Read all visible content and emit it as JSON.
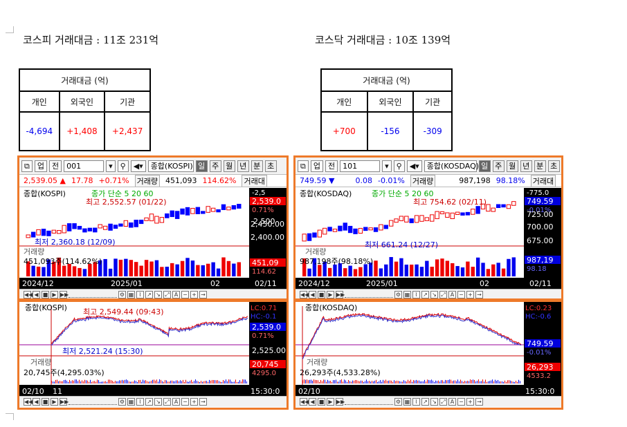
{
  "headlines": {
    "kospi": "코스피 거래대금 : 11조 231억",
    "kosdaq": "코스닥 거래대금 : 10조 139억"
  },
  "tables": {
    "kospi": {
      "title": "거래대금 (억)",
      "headers": [
        "개인",
        "외국인",
        "기관"
      ],
      "values": [
        "-4,694",
        "+1,408",
        "+2,437"
      ]
    },
    "kosdaq": {
      "title": "거래대금 (억)",
      "headers": [
        "개인",
        "외국인",
        "기관"
      ],
      "values": [
        "+700",
        "-156",
        "-309"
      ]
    }
  },
  "panels": {
    "kospi": {
      "toolbar": {
        "menu": "업",
        "market": "전",
        "code": "001",
        "name": "종합(KOSPI)",
        "tabs": [
          "일",
          "주",
          "월",
          "년",
          "분",
          "초"
        ],
        "selected_tab": "일"
      },
      "quote": {
        "price": "2,539.05",
        "arrow": "▲",
        "change": "17.78",
        "pct": "+0.71%",
        "vol_label": "거래량",
        "volume": "451,093",
        "vol_pct": "114.62%",
        "trail": "거래대"
      },
      "daily": {
        "legend_name": "종합(KOSPI)",
        "legend_ma": "종가 단순 5 20 60",
        "high_label": "최고 2,552.57 (01/22)",
        "low_label": "최저 2,360.18 (12/09)",
        "price_box": "2,539.0",
        "pct_box": "0.71%",
        "y_top": "-2,5",
        "ticks": [
          "2,500",
          "2,450.00",
          "2,400.00"
        ],
        "vol_title": "거래량",
        "vol_text": "451,093주(114.62%)",
        "vol_box": "451,09",
        "vol_box2": "114.62",
        "x_labels": [
          "2024/12",
          "2025/01",
          "02",
          "02/11"
        ]
      },
      "intraday": {
        "legend_name": "종합(KOSPI)",
        "high_label": "최고 2,549.44 (09:43)",
        "low_label": "최저 2,521.24 (15:30)",
        "lc": "LC:0.71",
        "hc": "HC:-0.1",
        "price_box": "2,539.0",
        "pct_box": "0.71%",
        "tick": "2,525.00",
        "vol_title": "거래량",
        "vol_text": "20,745주(4,295.03%)",
        "vol_box": "20,745",
        "vol_box2": "4295.0",
        "x_labels": [
          "02/10",
          "11",
          "15:30:0"
        ]
      }
    },
    "kosdaq": {
      "toolbar": {
        "menu": "업",
        "market": "전",
        "code": "101",
        "name": "종합(KOSDAQ)",
        "tabs": [
          "일",
          "주",
          "월",
          "년",
          "분",
          "초"
        ],
        "selected_tab": "일"
      },
      "quote": {
        "price": "749.59",
        "arrow": "▼",
        "change": "0.08",
        "pct": "-0.01%",
        "vol_label": "거래량",
        "volume": "987,198",
        "vol_pct": "98.18%",
        "trail": "거래대"
      },
      "daily": {
        "legend_name": "종합(KOSDAQ)",
        "legend_ma": "종가 단순 5 20 60",
        "high_label": "최고 754.62 (02/11)",
        "low_label": "최저 661.24 (12/27)",
        "price_box": "749.59",
        "pct_box": "-0.01%",
        "y_top": "-775.0",
        "ticks": [
          "725.00",
          "700.00",
          "675.00"
        ],
        "vol_title": "거래량",
        "vol_text": "987,198주(98.18%)",
        "vol_box": "987,19",
        "vol_box2": "98.18",
        "x_labels": [
          "2024/12",
          "2025/01",
          "02",
          "02/11"
        ]
      },
      "intraday": {
        "legend_name": "종합(KOSDAQ)",
        "high_label": "",
        "low_label": "",
        "lc": "LC:0.23",
        "hc": "HC:-0.6",
        "price_box": "749.59",
        "pct_box": "-0.01%",
        "tick": "",
        "vol_title": "거래량",
        "vol_text": "26,293주(4,533.28%)",
        "vol_box": "26,293",
        "vol_box2": "4533.2",
        "x_labels": [
          "02/10",
          "",
          "15:30:0"
        ]
      }
    }
  },
  "colors": {
    "up": "#ff0000",
    "down": "#0000ff",
    "frame": "#ee7a2a",
    "panel_bg": "#000000"
  },
  "icons": [
    "menu-icon",
    "dropdown-icon",
    "search-icon",
    "speaker-icon",
    "play-icon",
    "stop-icon",
    "settings-icon"
  ]
}
